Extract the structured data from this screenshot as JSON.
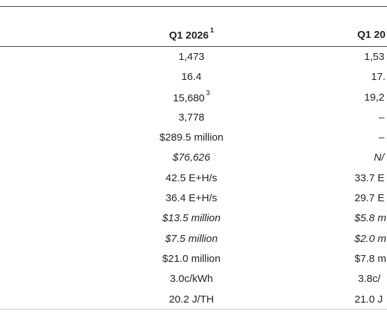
{
  "header": {
    "col1_label": "Q1 2026",
    "col1_footnote": "1",
    "col2_label": "Q1 20"
  },
  "rows": [
    {
      "col1": "1,473",
      "col1_sup": "",
      "col2": "1,53",
      "italic": false
    },
    {
      "col1": "16.4",
      "col1_sup": "",
      "col2": "17.",
      "italic": false
    },
    {
      "col1": "15,680",
      "col1_sup": "3",
      "col2": "19,2",
      "italic": false
    },
    {
      "col1": "3,778",
      "col1_sup": "",
      "col2": "–",
      "italic": false
    },
    {
      "col1": "$289.5 million",
      "col1_sup": "",
      "col2": "–",
      "italic": false
    },
    {
      "col1": "$76,626",
      "col1_sup": "",
      "col2": "N/",
      "italic": true
    },
    {
      "col1": "42.5 E+H/s",
      "col1_sup": "",
      "col2": "33.7 E",
      "italic": false
    },
    {
      "col1": "36.4 E+H/s",
      "col1_sup": "",
      "col2": "29.7 E",
      "italic": false
    },
    {
      "col1": "$13.5 million",
      "col1_sup": "",
      "col2": "$5.8 m",
      "italic": true
    },
    {
      "col1": "$7.5 million",
      "col1_sup": "",
      "col2": "$2.0 m",
      "italic": true
    },
    {
      "col1": "$21.0 million",
      "col1_sup": "",
      "col2": "$7.8 m",
      "italic": false
    },
    {
      "col1": "3.0c/kWh",
      "col1_sup": "",
      "col2": "3.8c/",
      "italic": false
    },
    {
      "col1": "20.2 J/TH",
      "col1_sup": "",
      "col2": "21.0 J",
      "italic": false
    }
  ]
}
